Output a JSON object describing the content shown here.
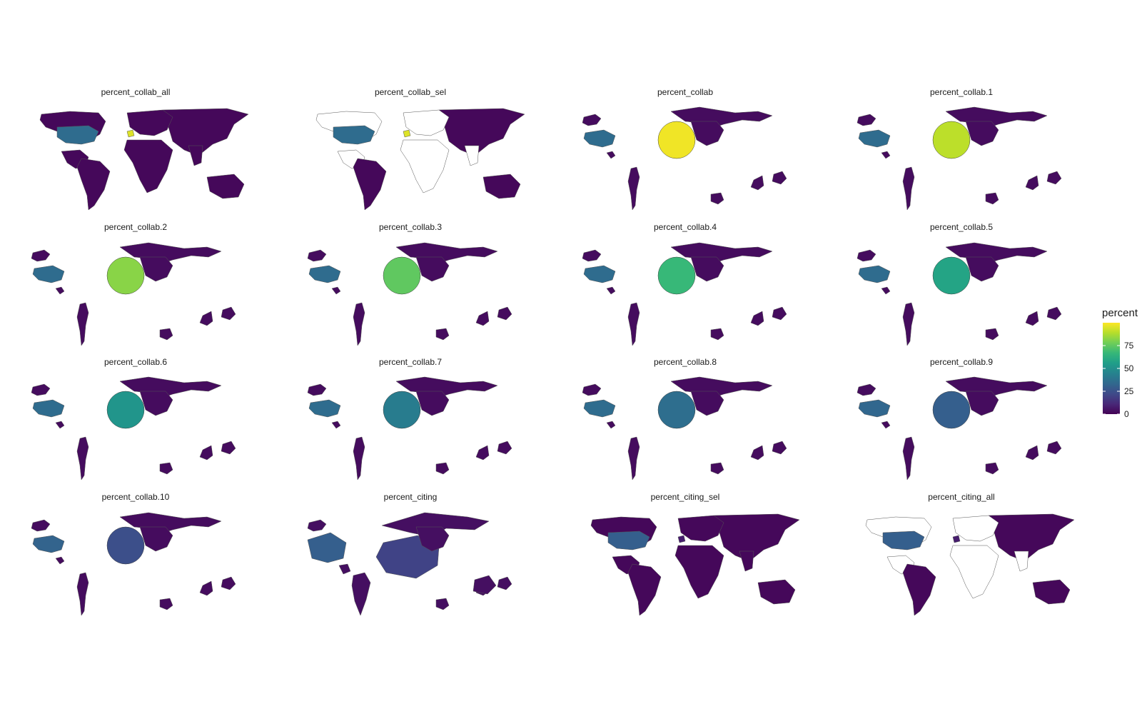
{
  "chart_data": {
    "type": "choropleth-facets",
    "facets": [
      {
        "title": "percent_collab_all",
        "style": "world",
        "europe_value": 95,
        "us_value": 35,
        "other_value": 2,
        "blank_others": false
      },
      {
        "title": "percent_collab_sel",
        "style": "world",
        "europe_value": 95,
        "us_value": 35,
        "other_value": 2,
        "blank_others": true
      },
      {
        "title": "percent_collab",
        "style": "cartogram",
        "europe_value": 98,
        "us_value": 35,
        "other_value": 3
      },
      {
        "title": "percent_collab.1",
        "style": "cartogram",
        "europe_value": 90,
        "us_value": 35,
        "other_value": 3
      },
      {
        "title": "percent_collab.2",
        "style": "cartogram",
        "europe_value": 82,
        "us_value": 35,
        "other_value": 3
      },
      {
        "title": "percent_collab.3",
        "style": "cartogram",
        "europe_value": 75,
        "us_value": 35,
        "other_value": 3
      },
      {
        "title": "percent_collab.4",
        "style": "cartogram",
        "europe_value": 67,
        "us_value": 35,
        "other_value": 3
      },
      {
        "title": "percent_collab.5",
        "style": "cartogram",
        "europe_value": 58,
        "us_value": 35,
        "other_value": 3
      },
      {
        "title": "percent_collab.6",
        "style": "cartogram",
        "europe_value": 52,
        "us_value": 35,
        "other_value": 3
      },
      {
        "title": "percent_collab.7",
        "style": "cartogram",
        "europe_value": 42,
        "us_value": 35,
        "other_value": 3
      },
      {
        "title": "percent_collab.8",
        "style": "cartogram",
        "europe_value": 36,
        "us_value": 35,
        "other_value": 3
      },
      {
        "title": "percent_collab.9",
        "style": "cartogram",
        "europe_value": 30,
        "us_value": 33,
        "other_value": 3
      },
      {
        "title": "percent_collab.10",
        "style": "cartogram",
        "europe_value": 24,
        "us_value": 32,
        "other_value": 3
      },
      {
        "title": "percent_citing",
        "style": "cartogram-wide",
        "europe_value": 20,
        "us_value": 30,
        "other_value": 4
      },
      {
        "title": "percent_citing_sel",
        "style": "world",
        "europe_value": 8,
        "us_value": 30,
        "other_value": 2,
        "blank_others": false
      },
      {
        "title": "percent_citing_all",
        "style": "world",
        "europe_value": 8,
        "us_value": 30,
        "other_value": 2,
        "blank_others": true
      }
    ],
    "legend": {
      "title": "percent",
      "ticks": [
        0,
        25,
        50,
        75
      ],
      "tick_labels": [
        "0",
        "25",
        "50",
        "75"
      ],
      "range": [
        0,
        100
      ],
      "palette": [
        "#440154",
        "#482878",
        "#3e4a89",
        "#31688e",
        "#26828e",
        "#1f9e89",
        "#35b779",
        "#6ece58",
        "#b5de2b",
        "#fde725"
      ]
    }
  }
}
